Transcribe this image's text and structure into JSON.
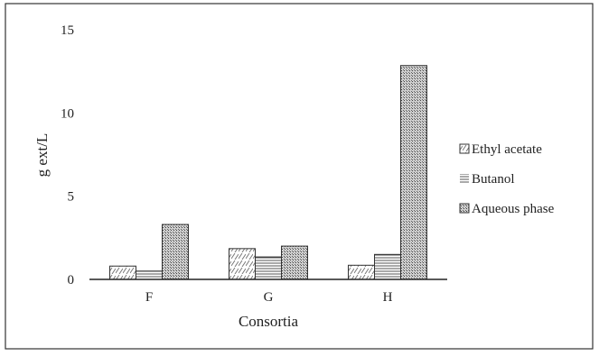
{
  "chart_data": {
    "type": "bar",
    "title": "",
    "xlabel": "Consortia",
    "ylabel": "g ext/L",
    "categories": [
      "F",
      "G",
      "H"
    ],
    "ylim": [
      0,
      15
    ],
    "yticks": [
      0,
      5,
      10,
      15
    ],
    "grid": false,
    "legend_position": "right",
    "series": [
      {
        "name": "Ethyl acetate",
        "values": [
          0.8,
          1.85,
          0.85
        ],
        "pattern": "diagonal-dashes",
        "color": "#ffffff"
      },
      {
        "name": "Butanol",
        "values": [
          0.5,
          1.35,
          1.5
        ],
        "pattern": "horizontal-lines",
        "color": "#ffffff"
      },
      {
        "name": "Aqueous phase",
        "values": [
          3.3,
          2.0,
          12.85
        ],
        "pattern": "crosshatch",
        "color": "#b8b8b8"
      }
    ]
  }
}
